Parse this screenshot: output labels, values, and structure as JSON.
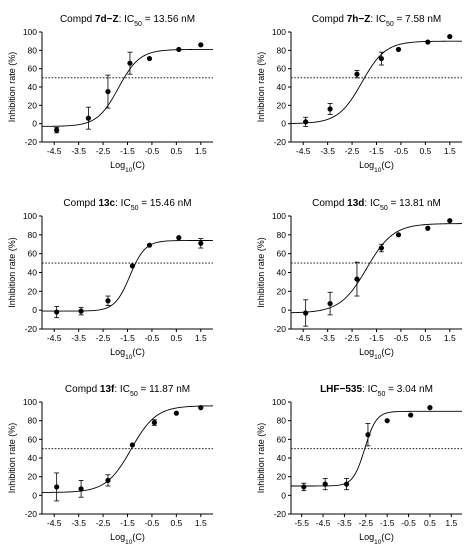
{
  "chart_data": [
    {
      "type": "scatter",
      "title": {
        "prefix": "Compd ",
        "bold": "7d−Z",
        "mid": ": IC",
        "sub": "50",
        "suffix": " = 13.56 nM"
      },
      "xlabel": {
        "main": "Log",
        "sub": "10",
        "tail": "(C)"
      },
      "ylabel": "Inhibition rate (%)",
      "xticks": [
        -4.5,
        -3.5,
        -2.5,
        -1.5,
        -0.5,
        0.5,
        1.5
      ],
      "xlim": [
        -5.0,
        2.0
      ],
      "ylim": [
        -20,
        100
      ],
      "yticks": [
        -20,
        0,
        20,
        40,
        60,
        80,
        100
      ],
      "reference_line": 50,
      "fit": {
        "bottom": -3,
        "top": 81,
        "logIC50": -1.87,
        "hill": 1.0
      },
      "points": [
        {
          "x": -4.4,
          "y": -7,
          "err": 3
        },
        {
          "x": -3.1,
          "y": 6,
          "err": 12
        },
        {
          "x": -2.3,
          "y": 35,
          "err": 18
        },
        {
          "x": -1.4,
          "y": 66,
          "err": 12
        },
        {
          "x": -0.6,
          "y": 71,
          "err": 0
        },
        {
          "x": 0.6,
          "y": 81,
          "err": 0
        },
        {
          "x": 1.5,
          "y": 86,
          "err": 0
        }
      ]
    },
    {
      "type": "scatter",
      "title": {
        "prefix": "Compd ",
        "bold": "7h−Z",
        "mid": ": IC",
        "sub": "50",
        "suffix": " = 7.58 nM"
      },
      "xlabel": {
        "main": "Log",
        "sub": "10",
        "tail": "(C)"
      },
      "ylabel": "Inhibition rate (%)",
      "xticks": [
        -4.5,
        -3.5,
        -2.5,
        -1.5,
        -0.5,
        0.5,
        1.5
      ],
      "xlim": [
        -5.0,
        2.0
      ],
      "ylim": [
        -20,
        100
      ],
      "yticks": [
        -20,
        0,
        20,
        40,
        60,
        80,
        100
      ],
      "reference_line": 50,
      "fit": {
        "bottom": 0,
        "top": 90,
        "logIC50": -2.1,
        "hill": 0.9
      },
      "points": [
        {
          "x": -4.4,
          "y": 2,
          "err": 5
        },
        {
          "x": -3.4,
          "y": 16,
          "err": 6
        },
        {
          "x": -2.3,
          "y": 54,
          "err": 4
        },
        {
          "x": -1.3,
          "y": 71,
          "err": 7
        },
        {
          "x": -0.6,
          "y": 81,
          "err": 0
        },
        {
          "x": 0.6,
          "y": 89,
          "err": 0
        },
        {
          "x": 1.5,
          "y": 95,
          "err": 0
        }
      ]
    },
    {
      "type": "scatter",
      "title": {
        "prefix": "Compd ",
        "bold": "13c",
        "mid": ": IC",
        "sub": "50",
        "suffix": " = 15.46 nM"
      },
      "xlabel": {
        "main": "Log",
        "sub": "10",
        "tail": "(C)"
      },
      "ylabel": "Inhibition rate (%)",
      "xticks": [
        -4.5,
        -3.5,
        -2.5,
        -1.5,
        -0.5,
        0.5,
        1.5
      ],
      "xlim": [
        -5.0,
        2.0
      ],
      "ylim": [
        -20,
        100
      ],
      "yticks": [
        -20,
        0,
        20,
        40,
        60,
        80,
        100
      ],
      "reference_line": 50,
      "fit": {
        "bottom": -1,
        "top": 74,
        "logIC50": -1.4,
        "hill": 1.4
      },
      "points": [
        {
          "x": -4.4,
          "y": -2,
          "err": 6
        },
        {
          "x": -3.4,
          "y": -1,
          "err": 4
        },
        {
          "x": -2.3,
          "y": 10,
          "err": 5
        },
        {
          "x": -1.3,
          "y": 47,
          "err": 0
        },
        {
          "x": -0.6,
          "y": 69,
          "err": 0
        },
        {
          "x": 0.6,
          "y": 77,
          "err": 0
        },
        {
          "x": 1.5,
          "y": 71,
          "err": 5
        }
      ]
    },
    {
      "type": "scatter",
      "title": {
        "prefix": "Compd ",
        "bold": "13d",
        "mid": ": IC",
        "sub": "50",
        "suffix": " = 13.81 nM"
      },
      "xlabel": {
        "main": "Log",
        "sub": "10",
        "tail": "(C)"
      },
      "ylabel": "Inhibition rate (%)",
      "xticks": [
        -4.5,
        -3.5,
        -2.5,
        -1.5,
        -0.5,
        0.5,
        1.5
      ],
      "xlim": [
        -5.0,
        2.0
      ],
      "ylim": [
        -20,
        100
      ],
      "yticks": [
        -20,
        0,
        20,
        40,
        60,
        80,
        100
      ],
      "reference_line": 50,
      "fit": {
        "bottom": -3,
        "top": 92,
        "logIC50": -1.9,
        "hill": 0.8
      },
      "points": [
        {
          "x": -4.4,
          "y": -3,
          "err": 14
        },
        {
          "x": -3.4,
          "y": 7,
          "err": 12
        },
        {
          "x": -2.3,
          "y": 33,
          "err": 18
        },
        {
          "x": -1.3,
          "y": 66,
          "err": 4
        },
        {
          "x": -0.6,
          "y": 80,
          "err": 0
        },
        {
          "x": 0.6,
          "y": 87,
          "err": 0
        },
        {
          "x": 1.5,
          "y": 95,
          "err": 0
        }
      ]
    },
    {
      "type": "scatter",
      "title": {
        "prefix": "Compd ",
        "bold": "13f",
        "mid": ": IC",
        "sub": "50",
        "suffix": " = 11.87 nM"
      },
      "xlabel": {
        "main": "Log",
        "sub": "10",
        "tail": "(C)"
      },
      "ylabel": "Inhibition rate (%)",
      "xticks": [
        -4.5,
        -3.5,
        -2.5,
        -1.5,
        -0.5,
        0.5,
        1.5
      ],
      "xlim": [
        -5.0,
        2.0
      ],
      "ylim": [
        -20,
        100
      ],
      "yticks": [
        -20,
        0,
        20,
        40,
        60,
        80,
        100
      ],
      "reference_line": 50,
      "fit": {
        "bottom": 3,
        "top": 96,
        "logIC50": -1.35,
        "hill": 0.85
      },
      "points": [
        {
          "x": -4.4,
          "y": 9,
          "err": 15
        },
        {
          "x": -3.4,
          "y": 7,
          "err": 9
        },
        {
          "x": -2.3,
          "y": 16,
          "err": 6
        },
        {
          "x": -1.3,
          "y": 54,
          "err": 0
        },
        {
          "x": -0.4,
          "y": 78,
          "err": 3
        },
        {
          "x": 0.5,
          "y": 88,
          "err": 0
        },
        {
          "x": 1.5,
          "y": 94,
          "err": 0
        }
      ]
    },
    {
      "type": "scatter",
      "title": {
        "prefix": "",
        "bold": "LHF−535",
        "mid": ": IC",
        "sub": "50",
        "suffix": " = 3.04 nM"
      },
      "xlabel": {
        "main": "Log",
        "sub": "10",
        "tail": "(C)"
      },
      "ylabel": "Inhibition rate (%)",
      "xticks": [
        -5.5,
        -4.5,
        -3.5,
        -2.5,
        -1.5,
        -0.5,
        0.5,
        1.5
      ],
      "xlim": [
        -6.0,
        2.0
      ],
      "ylim": [
        -20,
        100
      ],
      "yticks": [
        -20,
        0,
        20,
        40,
        60,
        80,
        100
      ],
      "reference_line": 50,
      "fit": {
        "bottom": 10,
        "top": 90,
        "logIC50": -2.55,
        "hill": 1.6
      },
      "points": [
        {
          "x": -5.4,
          "y": 9,
          "err": 4
        },
        {
          "x": -4.4,
          "y": 12,
          "err": 6
        },
        {
          "x": -3.4,
          "y": 12,
          "err": 6
        },
        {
          "x": -2.4,
          "y": 65,
          "err": 12
        },
        {
          "x": -1.5,
          "y": 80,
          "err": 0
        },
        {
          "x": -0.4,
          "y": 86,
          "err": 0
        },
        {
          "x": 0.5,
          "y": 94,
          "err": 0
        }
      ]
    }
  ]
}
